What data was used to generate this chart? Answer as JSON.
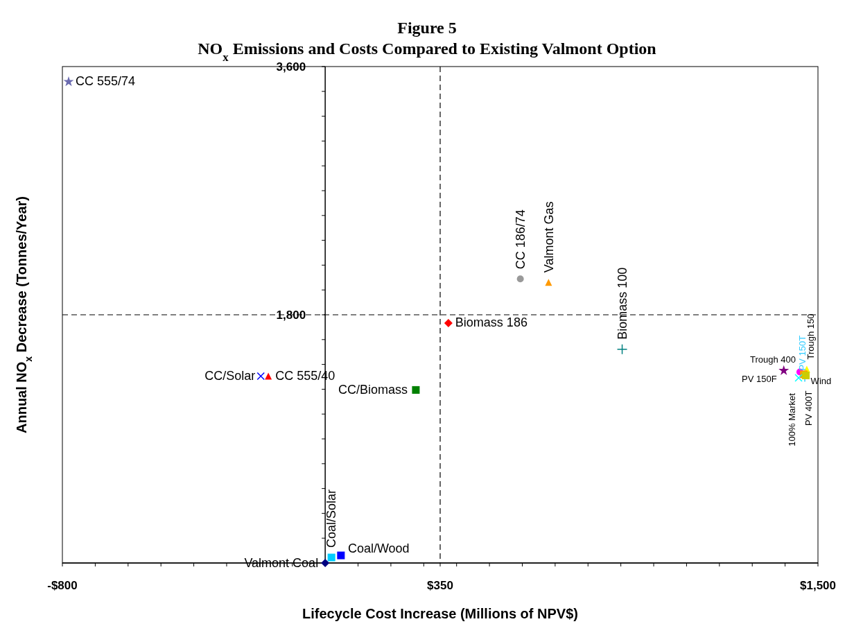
{
  "chart_data": {
    "type": "scatter",
    "title": "Figure 5",
    "subtitle": "NO$_{x}$ Emissions and Costs Compared to Existing Valmont Option",
    "xlabel": "Lifecycle Cost Increase (Millions of NPV$)",
    "ylabel": "Annual NO$_{x}$ Decrease (Tonnes/Year)",
    "xlim": [
      -800,
      1500
    ],
    "ylim": [
      0,
      3600
    ],
    "xticks": [
      {
        "value": -800,
        "label": "-$800"
      },
      {
        "value": -700,
        "label": null
      },
      {
        "value": -600,
        "label": null
      },
      {
        "value": -500,
        "label": null
      },
      {
        "value": -400,
        "label": null
      },
      {
        "value": -300,
        "label": null
      },
      {
        "value": -200,
        "label": null
      },
      {
        "value": -100,
        "label": null
      },
      {
        "value": 100,
        "label": null
      },
      {
        "value": 200,
        "label": null
      },
      {
        "value": 300,
        "label": null
      },
      {
        "value": 350,
        "label": "$350"
      },
      {
        "value": 400,
        "label": null
      },
      {
        "value": 500,
        "label": null
      },
      {
        "value": 600,
        "label": null
      },
      {
        "value": 700,
        "label": null
      },
      {
        "value": 800,
        "label": null
      },
      {
        "value": 900,
        "label": null
      },
      {
        "value": 1000,
        "label": null
      },
      {
        "value": 1100,
        "label": null
      },
      {
        "value": 1200,
        "label": null
      },
      {
        "value": 1300,
        "label": null
      },
      {
        "value": 1400,
        "label": null
      },
      {
        "value": 1500,
        "label": "$1,500"
      }
    ],
    "yticks": [
      {
        "value": 180,
        "label": null
      },
      {
        "value": 360,
        "label": null
      },
      {
        "value": 540,
        "label": null
      },
      {
        "value": 720,
        "label": null
      },
      {
        "value": 900,
        "label": null
      },
      {
        "value": 1080,
        "label": null
      },
      {
        "value": 1260,
        "label": null
      },
      {
        "value": 1440,
        "label": null
      },
      {
        "value": 1620,
        "label": null
      },
      {
        "value": 1800,
        "label": "1,800"
      },
      {
        "value": 1980,
        "label": null
      },
      {
        "value": 2160,
        "label": null
      },
      {
        "value": 2340,
        "label": null
      },
      {
        "value": 2520,
        "label": null
      },
      {
        "value": 2700,
        "label": null
      },
      {
        "value": 2880,
        "label": null
      },
      {
        "value": 3060,
        "label": null
      },
      {
        "value": 3240,
        "label": null
      },
      {
        "value": 3420,
        "label": null
      },
      {
        "value": 3600,
        "label": "3,600"
      }
    ],
    "grid": false,
    "ref_lines": [
      {
        "axis": "x",
        "value": 350,
        "line_style": "dashed",
        "color": "#000000"
      },
      {
        "axis": "y",
        "value": 1800,
        "line_style": "dashed",
        "color": "#000000"
      }
    ],
    "series": [
      {
        "name": "CC 555/74",
        "color": "#6b6bb0",
        "marker": "star",
        "x": [
          -781
        ],
        "values": [
          3490
        ]
      },
      {
        "name": "CC 186/74",
        "color": "#999999",
        "marker": "circle",
        "x": [
          594
        ],
        "values": [
          2060
        ]
      },
      {
        "name": "Valmont Gas",
        "color": "#ff9900",
        "marker": "triangle",
        "x": [
          680
        ],
        "values": [
          2035
        ]
      },
      {
        "name": "Biomass 186",
        "color": "#ff0000",
        "marker": "diamond",
        "x": [
          375
        ],
        "values": [
          1740
        ]
      },
      {
        "name": "Biomass 100",
        "color": "#008080",
        "marker": "plus",
        "x": [
          904
        ],
        "values": [
          1550
        ]
      },
      {
        "name": "CC/Solar",
        "color": "#0000ff",
        "marker": "cross",
        "x": [
          -196
        ],
        "values": [
          1355
        ]
      },
      {
        "name": "CC 555/40",
        "color": "#ff0000",
        "marker": "triangle",
        "x": [
          -173
        ],
        "values": [
          1355
        ]
      },
      {
        "name": "CC/Biomass",
        "color": "#008000",
        "marker": "square",
        "x": [
          276
        ],
        "values": [
          1255
        ]
      },
      {
        "name": "Coal/Solar",
        "color": "#00ccff",
        "marker": "square",
        "x": [
          19
        ],
        "values": [
          40
        ]
      },
      {
        "name": "Coal/Wood",
        "color": "#0000ff",
        "marker": "square",
        "x": [
          48
        ],
        "values": [
          55
        ]
      },
      {
        "name": "Valmont Coal",
        "color": "#000080",
        "marker": "diamond",
        "x": [
          0
        ],
        "values": [
          0
        ]
      },
      {
        "name": "PV 150F",
        "color": "#800080",
        "marker": "star",
        "x": [
          1396
        ],
        "values": [
          1395
        ]
      },
      {
        "name": "Trough 400",
        "color": "#ff00ff",
        "marker": "circle",
        "x": [
          1445
        ],
        "values": [
          1385
        ]
      },
      {
        "name": "Trough 150",
        "color": "#ffff00",
        "marker": "triangle",
        "x": [
          1466
        ],
        "values": [
          1405
        ]
      },
      {
        "name": "PV 150T",
        "color": "#33ccff",
        "marker": "plus",
        "x": [
          1460
        ],
        "values": [
          1350
        ]
      },
      {
        "name": "Wind",
        "color": "#ff9900",
        "marker": "square",
        "x": [
          1457
        ],
        "values": [
          1368
        ]
      },
      {
        "name": "100% Market",
        "color": "#00ffff",
        "marker": "cross",
        "x": [
          1441
        ],
        "values": [
          1342
        ]
      },
      {
        "name": "PV 400T",
        "color": "#cccc00",
        "marker": "square",
        "x": [
          1463
        ],
        "values": [
          1360
        ]
      }
    ]
  }
}
